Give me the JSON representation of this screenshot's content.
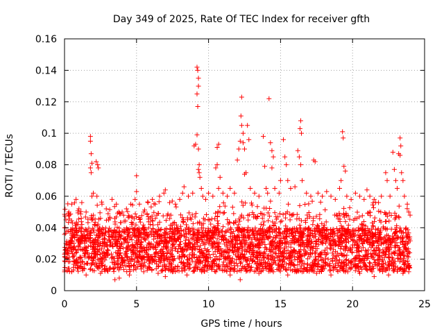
{
  "chart_data": {
    "type": "scatter",
    "title": "Day 349 of 2025, Rate Of TEC Index for receiver gfth",
    "xlabel": "GPS time / hours",
    "ylabel": "ROTI / TECUs",
    "xlim": [
      0,
      25
    ],
    "ylim": [
      0,
      0.16
    ],
    "x_ticks": [
      0,
      5,
      10,
      15,
      20,
      25
    ],
    "x_tick_labels": [
      "0",
      "5",
      "10",
      "15",
      "20",
      "25"
    ],
    "y_ticks": [
      0,
      0.02,
      0.04,
      0.06,
      0.08,
      0.1,
      0.12,
      0.14,
      0.16
    ],
    "y_tick_labels": [
      "0",
      "0.02",
      "0.04",
      "0.06",
      "0.08",
      "0.1",
      "0.12",
      "0.14",
      "0.16"
    ],
    "grid": true,
    "marker": "+",
    "marker_color": "#ff0000",
    "series": [
      {
        "name": "ROTI",
        "points": [
          [
            0.1,
            0.045
          ],
          [
            0.3,
            0.05
          ],
          [
            0.5,
            0.055
          ],
          [
            0.8,
            0.058
          ],
          [
            1.0,
            0.052
          ],
          [
            1.2,
            0.056
          ],
          [
            1.5,
            0.05
          ],
          [
            1.8,
            0.098
          ],
          [
            1.8,
            0.095
          ],
          [
            1.85,
            0.087
          ],
          [
            1.9,
            0.081
          ],
          [
            1.8,
            0.078
          ],
          [
            1.85,
            0.075
          ],
          [
            1.9,
            0.06
          ],
          [
            2.0,
            0.062
          ],
          [
            2.2,
            0.082
          ],
          [
            2.3,
            0.08
          ],
          [
            2.35,
            0.078
          ],
          [
            2.25,
            0.06
          ],
          [
            2.6,
            0.055
          ],
          [
            2.9,
            0.052
          ],
          [
            3.3,
            0.058
          ],
          [
            3.6,
            0.055
          ],
          [
            4.0,
            0.05
          ],
          [
            4.3,
            0.052
          ],
          [
            4.6,
            0.055
          ],
          [
            4.9,
            0.058
          ],
          [
            5.0,
            0.063
          ],
          [
            5.0,
            0.073
          ],
          [
            5.2,
            0.055
          ],
          [
            5.5,
            0.05
          ],
          [
            5.8,
            0.056
          ],
          [
            6.1,
            0.058
          ],
          [
            6.3,
            0.055
          ],
          [
            6.6,
            0.06
          ],
          [
            6.9,
            0.062
          ],
          [
            7.0,
            0.064
          ],
          [
            7.3,
            0.056
          ],
          [
            7.7,
            0.055
          ],
          [
            8.0,
            0.058
          ],
          [
            8.2,
            0.062
          ],
          [
            8.3,
            0.066
          ],
          [
            8.6,
            0.06
          ],
          [
            8.9,
            0.062
          ],
          [
            9.0,
            0.092
          ],
          [
            9.1,
            0.093
          ],
          [
            9.2,
            0.142
          ],
          [
            9.25,
            0.14
          ],
          [
            9.3,
            0.135
          ],
          [
            9.3,
            0.13
          ],
          [
            9.2,
            0.125
          ],
          [
            9.25,
            0.117
          ],
          [
            9.2,
            0.099
          ],
          [
            9.3,
            0.09
          ],
          [
            9.35,
            0.08
          ],
          [
            9.3,
            0.077
          ],
          [
            9.35,
            0.075
          ],
          [
            9.4,
            0.072
          ],
          [
            9.5,
            0.065
          ],
          [
            9.6,
            0.06
          ],
          [
            9.8,
            0.058
          ],
          [
            10.0,
            0.062
          ],
          [
            10.3,
            0.06
          ],
          [
            10.5,
            0.078
          ],
          [
            10.6,
            0.08
          ],
          [
            10.7,
            0.093
          ],
          [
            10.6,
            0.091
          ],
          [
            10.8,
            0.072
          ],
          [
            10.7,
            0.065
          ],
          [
            11.0,
            0.062
          ],
          [
            11.3,
            0.06
          ],
          [
            11.5,
            0.065
          ],
          [
            11.8,
            0.062
          ],
          [
            12.0,
            0.083
          ],
          [
            12.1,
            0.09
          ],
          [
            12.2,
            0.095
          ],
          [
            12.3,
            0.123
          ],
          [
            12.25,
            0.111
          ],
          [
            12.3,
            0.105
          ],
          [
            12.4,
            0.1
          ],
          [
            12.4,
            0.094
          ],
          [
            12.5,
            0.09
          ],
          [
            12.6,
            0.075
          ],
          [
            12.5,
            0.074
          ],
          [
            12.7,
            0.105
          ],
          [
            12.8,
            0.096
          ],
          [
            12.9,
            0.065
          ],
          [
            13.2,
            0.062
          ],
          [
            13.5,
            0.06
          ],
          [
            13.8,
            0.098
          ],
          [
            13.9,
            0.079
          ],
          [
            14.0,
            0.065
          ],
          [
            14.1,
            0.062
          ],
          [
            14.2,
            0.122
          ],
          [
            14.3,
            0.094
          ],
          [
            14.4,
            0.089
          ],
          [
            14.5,
            0.085
          ],
          [
            14.4,
            0.078
          ],
          [
            14.6,
            0.065
          ],
          [
            14.9,
            0.062
          ],
          [
            15.0,
            0.07
          ],
          [
            15.2,
            0.096
          ],
          [
            15.3,
            0.085
          ],
          [
            15.4,
            0.08
          ],
          [
            15.5,
            0.07
          ],
          [
            15.7,
            0.065
          ],
          [
            16.0,
            0.066
          ],
          [
            16.2,
            0.089
          ],
          [
            16.3,
            0.085
          ],
          [
            16.4,
            0.08
          ],
          [
            16.4,
            0.108
          ],
          [
            16.35,
            0.103
          ],
          [
            16.45,
            0.1
          ],
          [
            16.5,
            0.07
          ],
          [
            16.8,
            0.062
          ],
          [
            17.1,
            0.06
          ],
          [
            17.3,
            0.083
          ],
          [
            17.4,
            0.082
          ],
          [
            17.6,
            0.062
          ],
          [
            17.9,
            0.06
          ],
          [
            18.2,
            0.063
          ],
          [
            18.5,
            0.06
          ],
          [
            18.8,
            0.058
          ],
          [
            19.1,
            0.065
          ],
          [
            19.2,
            0.07
          ],
          [
            19.3,
            0.101
          ],
          [
            19.35,
            0.097
          ],
          [
            19.4,
            0.079
          ],
          [
            19.5,
            0.076
          ],
          [
            19.6,
            0.06
          ],
          [
            19.9,
            0.058
          ],
          [
            20.2,
            0.062
          ],
          [
            20.5,
            0.06
          ],
          [
            20.8,
            0.058
          ],
          [
            21.0,
            0.064
          ],
          [
            21.2,
            0.06
          ],
          [
            21.5,
            0.058
          ],
          [
            21.8,
            0.056
          ],
          [
            22.0,
            0.06
          ],
          [
            22.3,
            0.075
          ],
          [
            22.4,
            0.07
          ],
          [
            22.6,
            0.06
          ],
          [
            22.8,
            0.088
          ],
          [
            22.9,
            0.077
          ],
          [
            23.0,
            0.07
          ],
          [
            23.1,
            0.065
          ],
          [
            23.2,
            0.087
          ],
          [
            23.3,
            0.086
          ],
          [
            23.3,
            0.097
          ],
          [
            23.35,
            0.092
          ],
          [
            23.4,
            0.075
          ],
          [
            23.5,
            0.07
          ],
          [
            23.6,
            0.06
          ],
          [
            23.8,
            0.055
          ],
          [
            23.9,
            0.05
          ],
          [
            0.5,
            0.012
          ],
          [
            1.5,
            0.01
          ],
          [
            2.5,
            0.011
          ],
          [
            3.5,
            0.007
          ],
          [
            3.8,
            0.008
          ],
          [
            4.5,
            0.01
          ],
          [
            5.5,
            0.012
          ],
          [
            6.5,
            0.011
          ],
          [
            7.0,
            0.009
          ],
          [
            7.5,
            0.012
          ],
          [
            8.5,
            0.01
          ],
          [
            9.5,
            0.013
          ],
          [
            10.5,
            0.012
          ],
          [
            11.5,
            0.01
          ],
          [
            12.2,
            0.007
          ],
          [
            13.5,
            0.011
          ],
          [
            14.5,
            0.012
          ],
          [
            15.5,
            0.01
          ],
          [
            16.5,
            0.012
          ],
          [
            17.5,
            0.011
          ],
          [
            18.5,
            0.01
          ],
          [
            19.5,
            0.012
          ],
          [
            20.5,
            0.011
          ],
          [
            21.5,
            0.009
          ],
          [
            22.5,
            0.01
          ],
          [
            23.5,
            0.011
          ],
          [
            23.9,
            0.012
          ]
        ]
      }
    ]
  }
}
